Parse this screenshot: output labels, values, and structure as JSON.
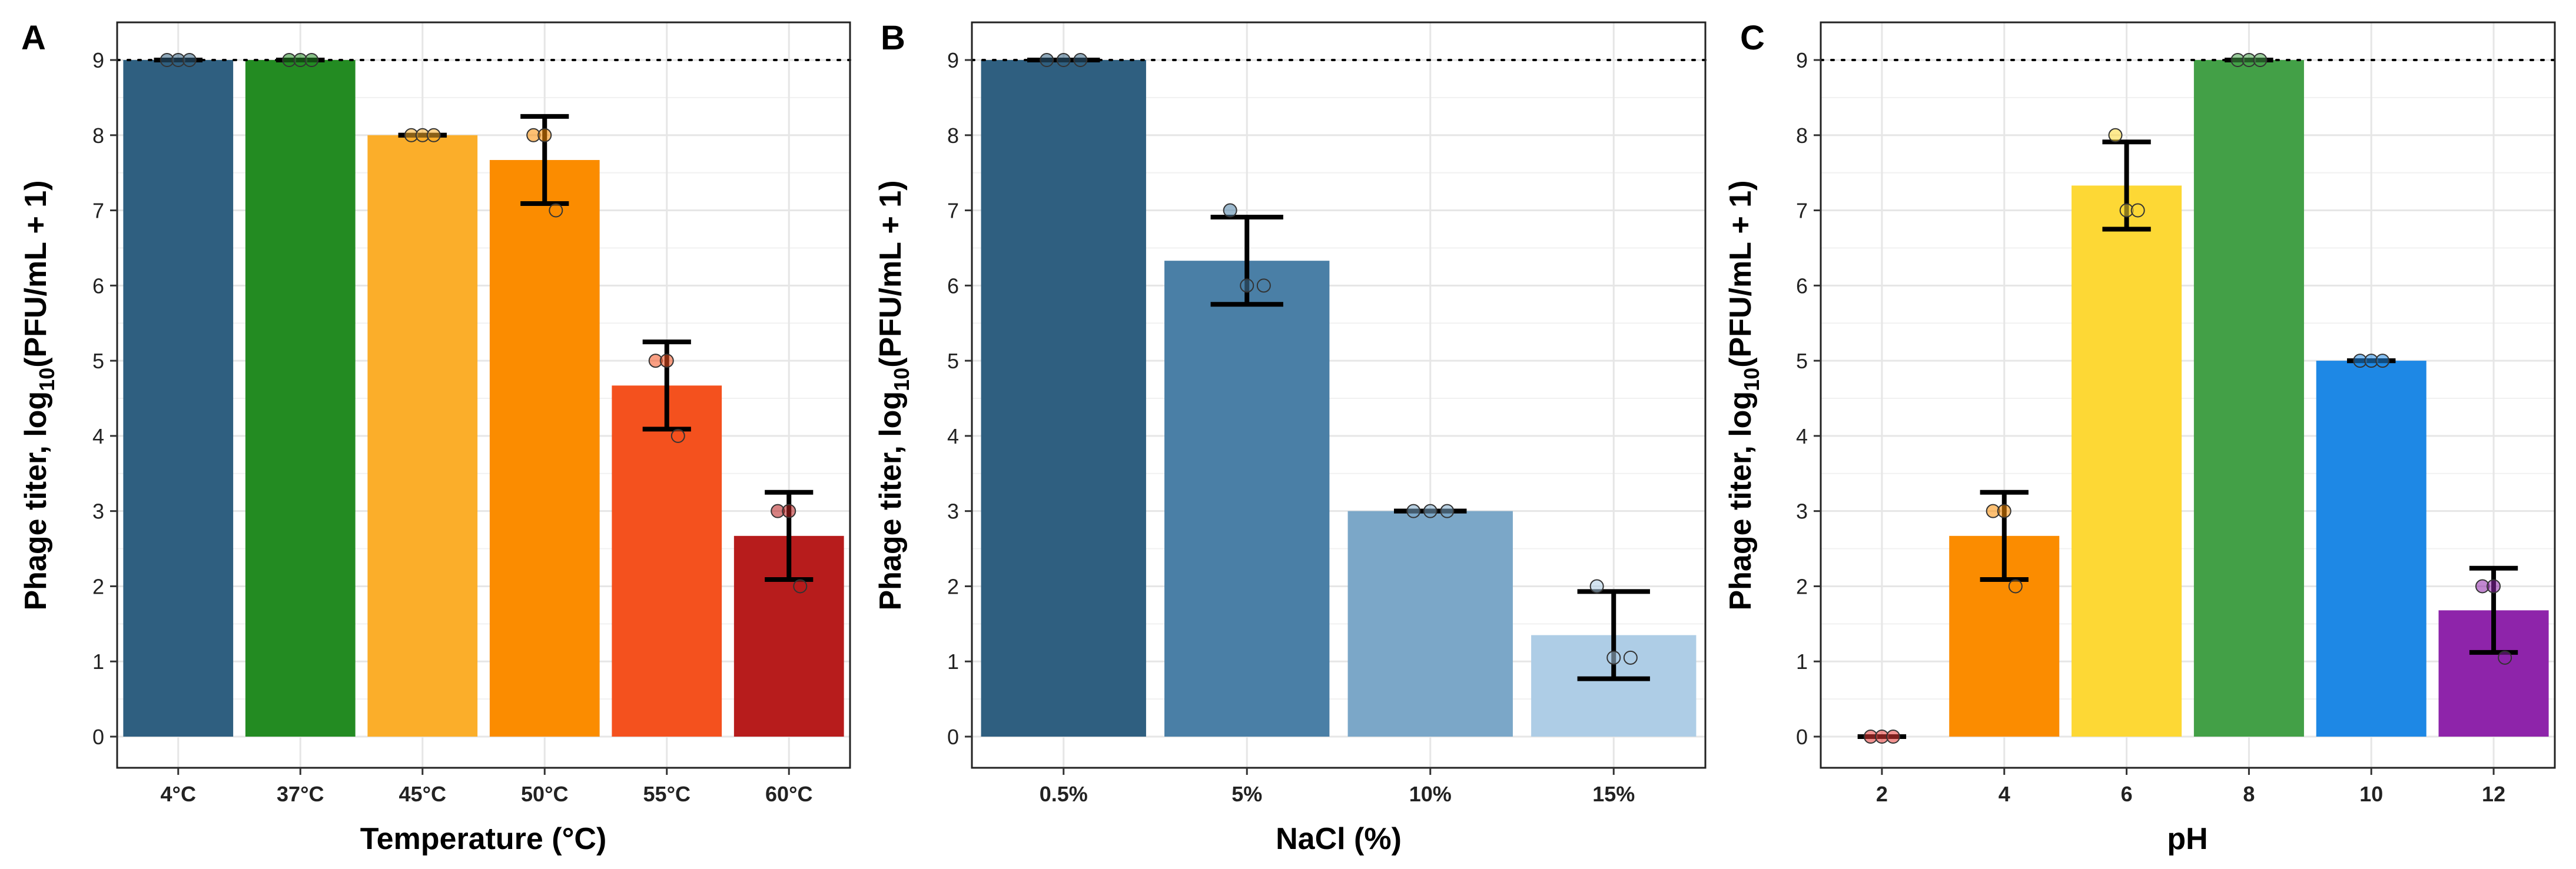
{
  "figure": {
    "max_titer_line": 9
  },
  "chart_data": [
    {
      "type": "bar",
      "panel": "A",
      "xlabel": "Temperature (°C)",
      "ylabel": {
        "prefix": "Phage titer, log",
        "sub": "10",
        "suffix": "(PFU/mL + 1)"
      },
      "ylim": [
        0,
        9
      ],
      "yticks": [
        0,
        1,
        2,
        3,
        4,
        5,
        6,
        7,
        8,
        9
      ],
      "reference_line": 9,
      "categories": [
        "4°C",
        "37°C",
        "45°C",
        "50°C",
        "55°C",
        "60°C"
      ],
      "values": [
        9,
        9,
        8,
        7.67,
        4.67,
        2.67
      ],
      "errors": [
        0,
        0,
        0,
        0.58,
        0.58,
        0.58
      ],
      "points": [
        [
          9,
          9,
          9
        ],
        [
          9,
          9,
          9
        ],
        [
          8,
          8,
          8
        ],
        [
          8,
          8,
          7
        ],
        [
          5,
          5,
          4
        ],
        [
          3,
          3,
          2
        ]
      ],
      "colors": [
        "#2f5f80",
        "#238b22",
        "#fbae2a",
        "#fb8c00",
        "#f4511e",
        "#b71c1c"
      ]
    },
    {
      "type": "bar",
      "panel": "B",
      "xlabel": "NaCl (%)",
      "ylabel": {
        "prefix": "Phage titer, log",
        "sub": "10",
        "suffix": "(PFU/mL + 1)"
      },
      "ylim": [
        0,
        9
      ],
      "yticks": [
        0,
        1,
        2,
        3,
        4,
        5,
        6,
        7,
        8,
        9
      ],
      "reference_line": 9,
      "categories": [
        "0.5%",
        "5%",
        "10%",
        "15%"
      ],
      "values": [
        9,
        6.33,
        3,
        1.35
      ],
      "errors": [
        0,
        0.58,
        0,
        0.58
      ],
      "points": [
        [
          9,
          9,
          9
        ],
        [
          7,
          6,
          6
        ],
        [
          3,
          3,
          3
        ],
        [
          2,
          1.05,
          1.05
        ]
      ],
      "colors": [
        "#2f5f80",
        "#4a7fa6",
        "#7ba7c8",
        "#aecde6"
      ]
    },
    {
      "type": "bar",
      "panel": "C",
      "xlabel": "pH",
      "ylabel": {
        "prefix": "Phage titer, log",
        "sub": "10",
        "suffix": "(PFU/mL + 1)"
      },
      "ylim": [
        0,
        9
      ],
      "yticks": [
        0,
        1,
        2,
        3,
        4,
        5,
        6,
        7,
        8,
        9
      ],
      "reference_line": 9,
      "categories": [
        "2",
        "4",
        "6",
        "8",
        "10",
        "12"
      ],
      "values": [
        0,
        2.67,
        7.33,
        9,
        5,
        1.68
      ],
      "errors": [
        0,
        0.58,
        0.58,
        0,
        0,
        0.56
      ],
      "points": [
        [
          0,
          0,
          0
        ],
        [
          3,
          3,
          2
        ],
        [
          8,
          7,
          7
        ],
        [
          9,
          9,
          9
        ],
        [
          5,
          5,
          5
        ],
        [
          2,
          2,
          1.05
        ]
      ],
      "colors": [
        "#e53935",
        "#fb8c00",
        "#fdd835",
        "#43a047",
        "#1e88e5",
        "#8e24aa"
      ]
    }
  ]
}
